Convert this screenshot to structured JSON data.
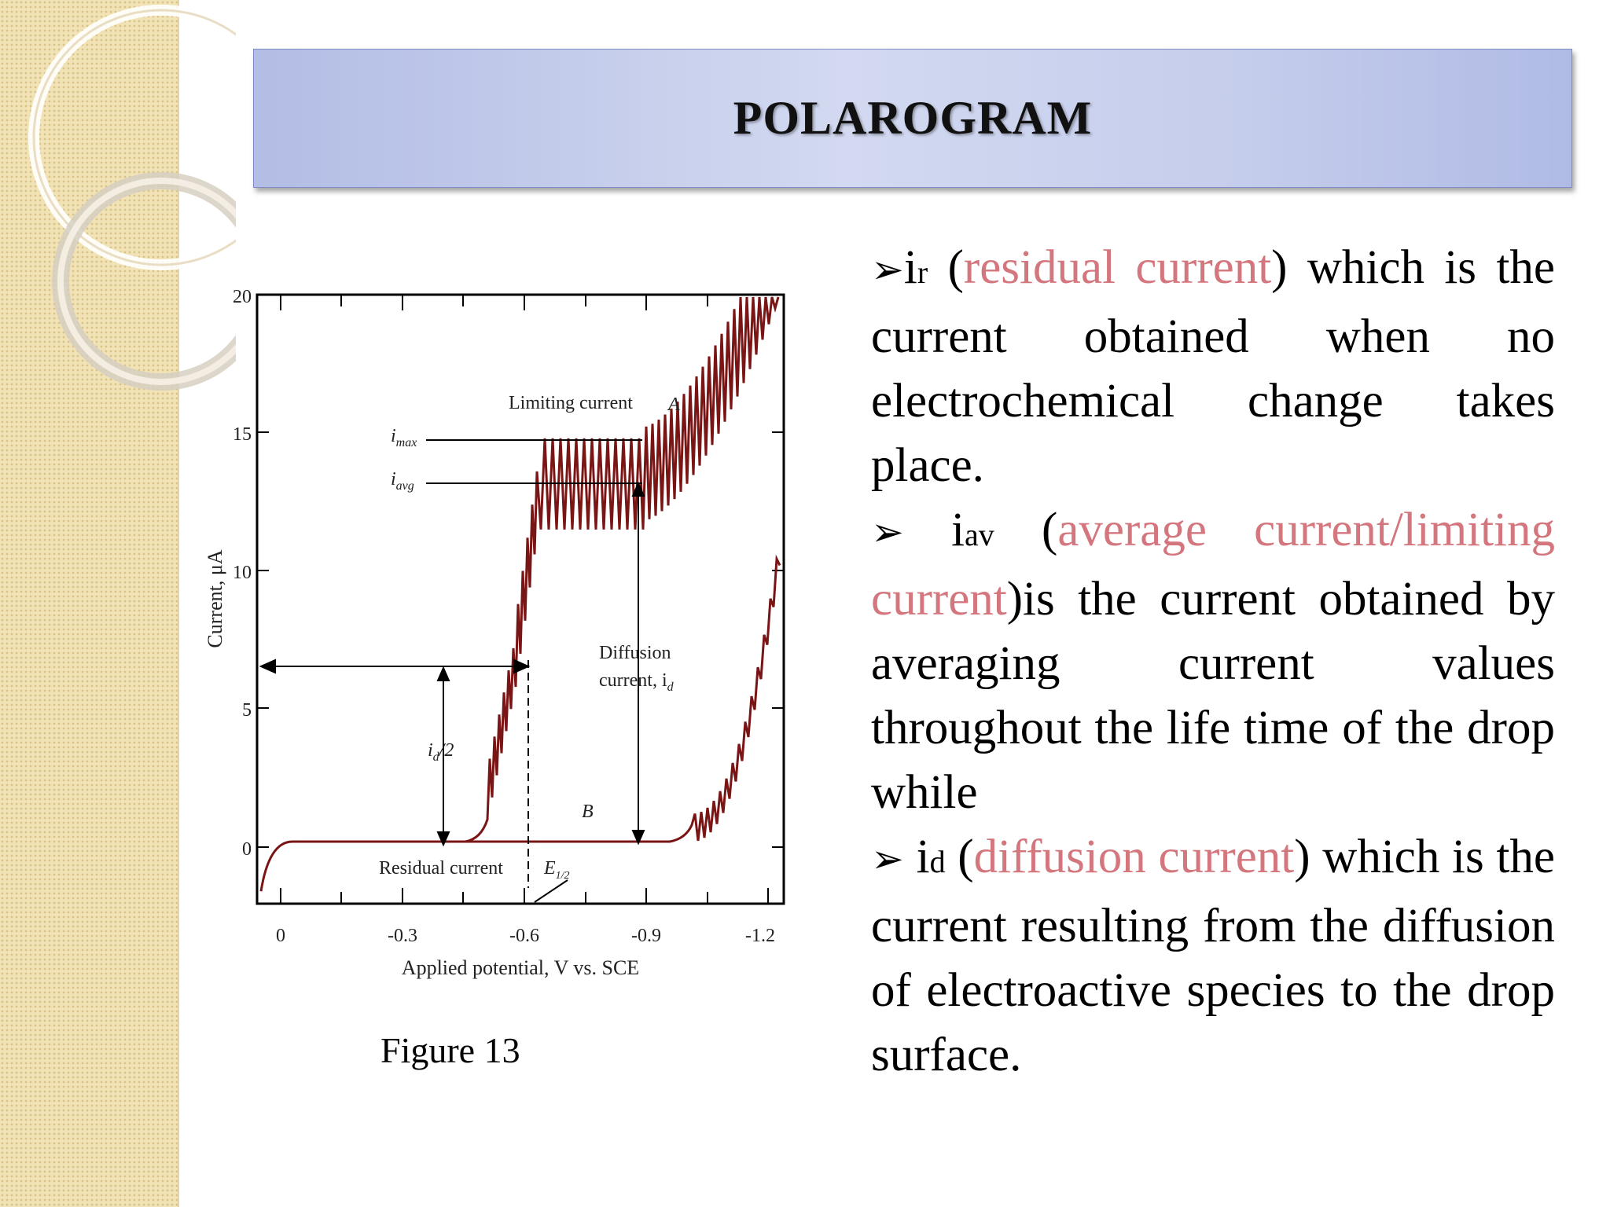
{
  "title": "POLAROGRAM",
  "figure": {
    "caption": "Figure 13",
    "y_label": "Current, μA",
    "x_label": "Applied potential, V vs. SCE",
    "y_ticks": [
      "0",
      "5",
      "10",
      "15",
      "20"
    ],
    "x_ticks": [
      "0",
      "-0.3",
      "-0.6",
      "-0.9",
      "-1.2"
    ],
    "annotations": {
      "limiting": "Limiting current",
      "A": "A",
      "B": "B",
      "imax_i": "i",
      "imax_sub": "max",
      "iavg_i": "i",
      "iavg_sub": "avg",
      "diffusion_line1": "Diffusion",
      "diffusion_line2": "current, i",
      "diffusion_sub": "d",
      "half_i": "i",
      "half_sub": "d",
      "half_rest": "/2",
      "residual": "Residual current",
      "e_half": "E",
      "e_half_sub": "1/2"
    }
  },
  "bullets": [
    {
      "arrow": "➢",
      "sym": "i",
      "sub": "r",
      "open": " (",
      "term": "residual current",
      "rest": ") which is the current obtained when no electrochemical change takes place."
    },
    {
      "arrow": "➢",
      "sym": " i",
      "sub": "av",
      "open": " (",
      "term": "average current/limiting current",
      "rest": ")is the current obtained by averaging current values throughout the life time of the drop while"
    },
    {
      "arrow": "➢",
      "sym": " i",
      "sub": "d",
      "open": " (",
      "term": "diffusion current",
      "rest": ") which is the current resulting from the diffusion of electroactive species to the drop surface."
    }
  ],
  "colors": {
    "highlight": "#d4767d",
    "curve": "#7a1515",
    "title_bg": "#c5cdec",
    "side_band": "#f2e3b6"
  }
}
